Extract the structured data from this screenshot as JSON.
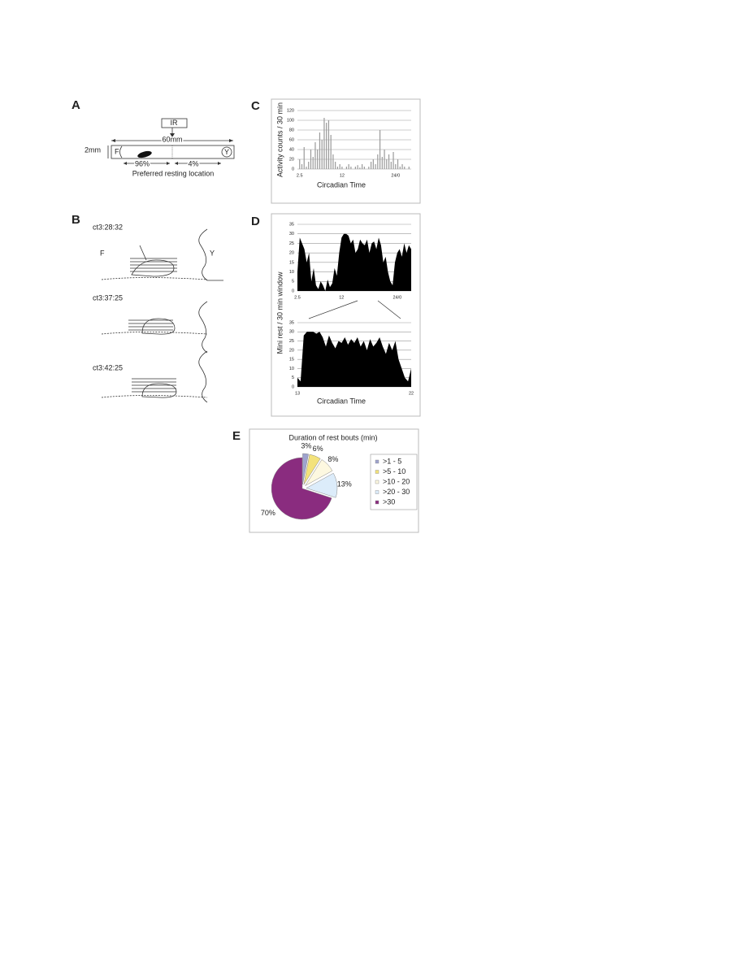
{
  "figure": {
    "panels": [
      "A",
      "B",
      "C",
      "D",
      "E"
    ],
    "panel_a": {
      "ir": "IR",
      "length": "60mm",
      "diameter": "2mm",
      "end_f": "F",
      "end_y": "Y",
      "left_pct": "96%",
      "right_pct": "4%",
      "caption": "Preferred resting location"
    },
    "panel_b": {
      "timestamps": [
        "ct3:28:32",
        "ct3:37:25",
        "ct3:42:25"
      ],
      "end_f": "F",
      "end_y": "Y"
    }
  },
  "chart_data": [
    {
      "type": "bar",
      "y_label": "Activity counts / 30 min",
      "x_label": "Circadian Time",
      "color": "#9a9a9a",
      "grid": true,
      "xlim": [
        2,
        27.5
      ],
      "ylim": [
        0,
        120
      ],
      "yticks": [
        0,
        20,
        40,
        60,
        80,
        100,
        120
      ],
      "xticks": [
        2.5,
        12,
        {
          "value": 24,
          "label": "24/0"
        }
      ],
      "x": [
        2.5,
        3,
        3.5,
        4,
        4.5,
        5,
        5.5,
        6,
        6.5,
        7,
        7.5,
        8,
        8.5,
        9,
        9.5,
        10,
        10.5,
        11,
        11.5,
        12,
        12.5,
        13,
        13.5,
        14,
        14.5,
        15,
        15.5,
        16,
        16.5,
        17,
        17.5,
        18,
        18.5,
        19,
        19.5,
        20,
        20.5,
        21,
        21.5,
        22,
        22.5,
        23,
        23.5,
        24,
        24.5,
        25,
        25.5,
        26,
        26.5,
        27
      ],
      "values": [
        20,
        10,
        45,
        5,
        15,
        40,
        25,
        55,
        40,
        75,
        60,
        105,
        95,
        100,
        70,
        30,
        15,
        5,
        10,
        5,
        0,
        5,
        10,
        5,
        0,
        5,
        8,
        3,
        10,
        5,
        0,
        5,
        15,
        20,
        10,
        30,
        80,
        25,
        40,
        20,
        30,
        15,
        35,
        10,
        20,
        5,
        10,
        5,
        0,
        5
      ]
    },
    {
      "type": "area",
      "y_label": "Mini rest / 30 min window",
      "color": "#000000",
      "grid": true,
      "xlim": [
        2.5,
        27
      ],
      "ylim": [
        0,
        35
      ],
      "yticks": [
        0,
        5,
        10,
        15,
        20,
        25,
        30,
        35
      ],
      "xticks": [
        2.5,
        12,
        {
          "value": 24,
          "label": "24/0"
        }
      ],
      "x": [
        2.5,
        3,
        3.5,
        4,
        4.5,
        5,
        5.5,
        6,
        6.5,
        7,
        7.5,
        8,
        8.5,
        9,
        9.5,
        10,
        10.5,
        11,
        11.5,
        12,
        12.5,
        13,
        13.5,
        14,
        14.5,
        15,
        15.5,
        16,
        16.5,
        17,
        17.5,
        18,
        18.5,
        19,
        19.5,
        20,
        20.5,
        21,
        21.5,
        22,
        22.5,
        23,
        23.5,
        24,
        24.5,
        25,
        25.5,
        26,
        26.5,
        27
      ],
      "values": [
        10,
        28,
        25,
        22,
        15,
        20,
        5,
        12,
        3,
        1,
        5,
        3,
        0,
        6,
        2,
        4,
        12,
        8,
        20,
        28,
        30,
        30,
        29,
        25,
        27,
        20,
        22,
        27,
        25,
        24,
        27,
        20,
        25,
        26,
        22,
        28,
        24,
        15,
        18,
        10,
        5,
        3,
        15,
        20,
        22,
        18,
        25,
        20,
        24,
        22
      ]
    },
    {
      "type": "area",
      "x_label": "Circadian Time",
      "color": "#000000",
      "grid": true,
      "xlim": [
        13,
        22
      ],
      "ylim": [
        0,
        35
      ],
      "yticks": [
        0,
        5,
        10,
        15,
        20,
        25,
        30,
        35
      ],
      "xticks": [
        13,
        22
      ],
      "x": [
        13,
        13.25,
        13.5,
        13.75,
        14,
        14.25,
        14.5,
        14.75,
        15,
        15.25,
        15.5,
        15.75,
        16,
        16.25,
        16.5,
        16.75,
        17,
        17.25,
        17.5,
        17.75,
        18,
        18.25,
        18.5,
        18.75,
        19,
        19.25,
        19.5,
        19.75,
        20,
        20.25,
        20.5,
        20.75,
        21,
        21.25,
        21.5,
        21.75,
        22
      ],
      "values": [
        5,
        3,
        28,
        30,
        30,
        30,
        29,
        30,
        27,
        22,
        28,
        24,
        21,
        25,
        24,
        27,
        23,
        26,
        24,
        27,
        22,
        25,
        20,
        26,
        22,
        24,
        27,
        22,
        18,
        24,
        20,
        25,
        15,
        10,
        5,
        3,
        10
      ]
    },
    {
      "type": "pie",
      "title": "Duration of rest bouts (min)",
      "categories": [
        ">1 - 5",
        ">5 - 10",
        ">10 - 20",
        ">20 - 30",
        ">30"
      ],
      "values": [
        3,
        6,
        8,
        13,
        70
      ],
      "value_labels": [
        "3%",
        "6%",
        "8%",
        "13%",
        "70%"
      ],
      "colors": [
        "#9ea3cf",
        "#f3e27a",
        "#fdf8e0",
        "#dcecfa",
        "#8a2c7f"
      ]
    }
  ]
}
